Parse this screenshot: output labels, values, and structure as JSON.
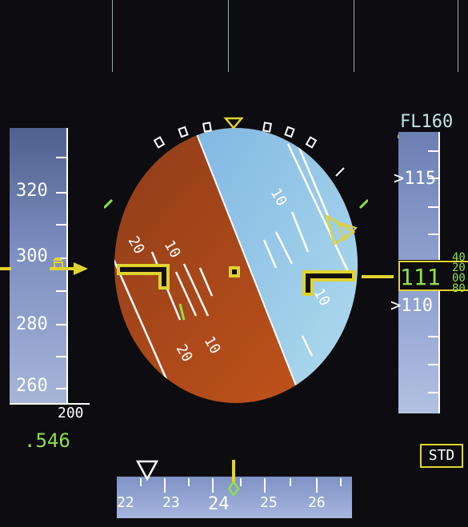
{
  "speed_tape": {
    "labels": [
      "320",
      "300",
      "280",
      "260"
    ],
    "bottom_value": "200",
    "mach": ".546",
    "current_speed": 300
  },
  "altitude_tape": {
    "flight_level_label": "FL160",
    "upper_label": ">115",
    "lower_label": ">110",
    "readout": "111",
    "drum_values": [
      "40",
      "20",
      "00",
      "80"
    ]
  },
  "baro": {
    "mode": "STD"
  },
  "heading_tape": {
    "labels": [
      "22",
      "23",
      "24",
      "25",
      "26"
    ],
    "current_heading": 24.3
  },
  "attitude": {
    "pitch_labels": [
      "10",
      "20",
      "10",
      "20",
      "10"
    ],
    "roll_deg": -30
  },
  "colors": {
    "sky": "#8fc3e8",
    "ground": "#a84a1e",
    "symbols": "#e0d330",
    "green": "#8ee04a"
  }
}
